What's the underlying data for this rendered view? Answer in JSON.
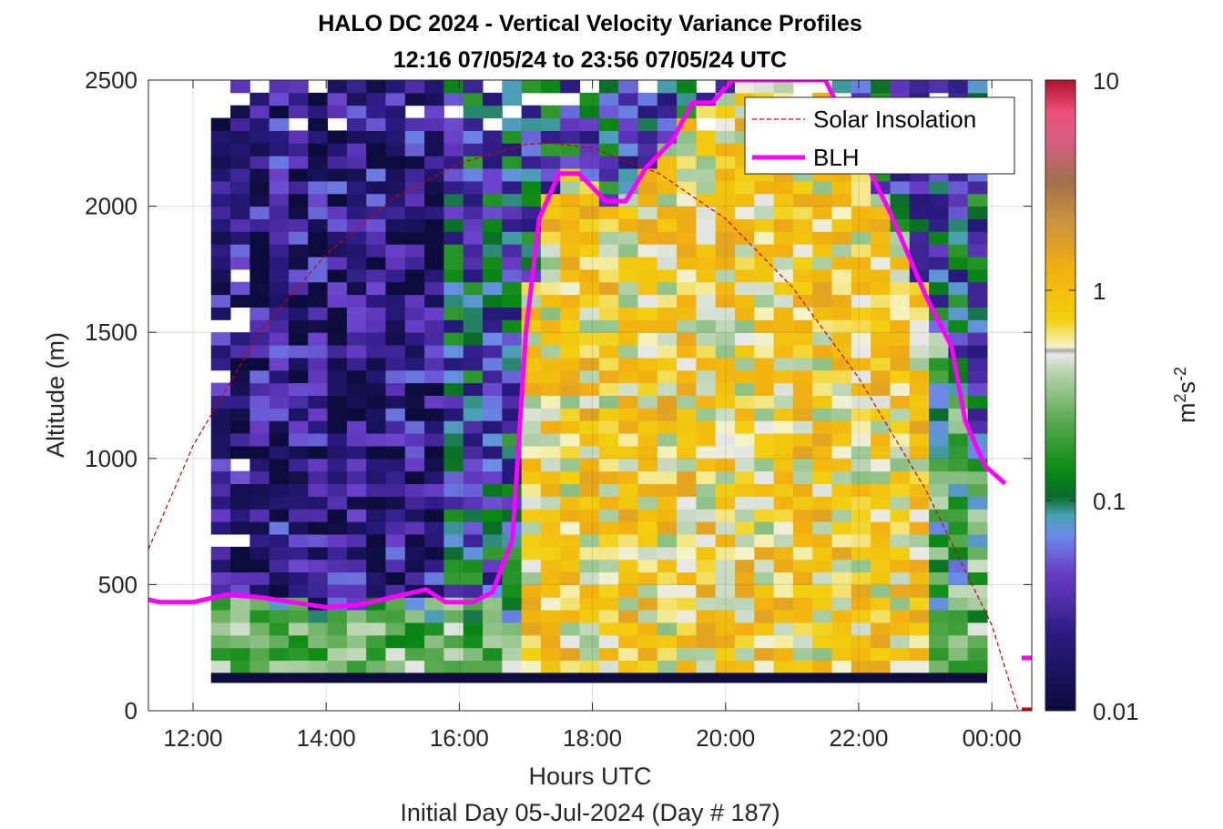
{
  "chart_data": {
    "type": "heatmap",
    "title": "HALO DC 2024 - Vertical Velocity Variance Profiles",
    "subtitle": "12:16 07/05/24 to 23:56 07/05/24  UTC",
    "xlabel": "Hours UTC",
    "xlabel2": "Initial Day 05-Jul-2024 (Day # 187)",
    "ylabel": "Altitude (m)",
    "xlim": [
      11.33,
      24.6
    ],
    "ylim": [
      0,
      2500
    ],
    "x_tick_labels": [
      "12:00",
      "14:00",
      "16:00",
      "18:00",
      "20:00",
      "22:00",
      "00:00"
    ],
    "x_tick_values": [
      12,
      14,
      16,
      18,
      20,
      22,
      24
    ],
    "y_tick_labels": [
      "0",
      "500",
      "1000",
      "1500",
      "2000",
      "2500"
    ],
    "y_tick_values": [
      0,
      500,
      1000,
      1500,
      2000,
      2500
    ],
    "grid": true,
    "colorbar": {
      "label_base": "m",
      "label_sup1": "2",
      "label_mid": "s",
      "label_sup2": "-2",
      "scale": "log",
      "range": [
        0.01,
        10
      ],
      "tick_labels": [
        "0.01",
        "0.1",
        "1",
        "10"
      ],
      "tick_values": [
        0.01,
        0.1,
        1,
        10
      ]
    },
    "heatmap": {
      "time_range": [
        12.27,
        23.93
      ],
      "altitude_range": [
        150,
        2500
      ],
      "description_of_regimes": "low variance (0.01-0.05) aloft before ~17:00, high variance (0.5-2) within boundary layer 17:00-23:00"
    },
    "series": [
      {
        "name": "Solar Insolation",
        "color": "#cc0000",
        "style": "dashed",
        "x": [
          11.33,
          12.0,
          13.0,
          14.0,
          15.0,
          16.0,
          17.0,
          17.4,
          18.0,
          19.0,
          20.0,
          21.0,
          22.0,
          23.0,
          24.0,
          24.4
        ],
        "y": [
          640,
          1050,
          1500,
          1810,
          2030,
          2170,
          2245,
          2250,
          2230,
          2130,
          1950,
          1680,
          1320,
          880,
          340,
          0
        ]
      },
      {
        "name": "BLH",
        "color": "#ff00ff",
        "style": "solid",
        "x": [
          11.33,
          11.5,
          12.0,
          12.5,
          13.0,
          13.5,
          14.0,
          14.5,
          15.0,
          15.5,
          15.8,
          16.2,
          16.5,
          16.8,
          17.0,
          17.2,
          17.5,
          17.8,
          18.2,
          18.5,
          18.8,
          19.2,
          19.5,
          19.8,
          20.1,
          21.5,
          22.0,
          22.5,
          23.0,
          23.4,
          23.6,
          23.9,
          24.2
        ],
        "y": [
          440,
          430,
          430,
          460,
          450,
          430,
          410,
          420,
          450,
          480,
          430,
          430,
          470,
          680,
          1500,
          1950,
          2130,
          2130,
          2020,
          2020,
          2150,
          2260,
          2410,
          2410,
          2500,
          2500,
          2230,
          1960,
          1650,
          1440,
          1150,
          970,
          900
        ]
      }
    ],
    "legend": {
      "placement": "top-right",
      "entries": [
        "Solar Insolation",
        "BLH"
      ]
    }
  }
}
